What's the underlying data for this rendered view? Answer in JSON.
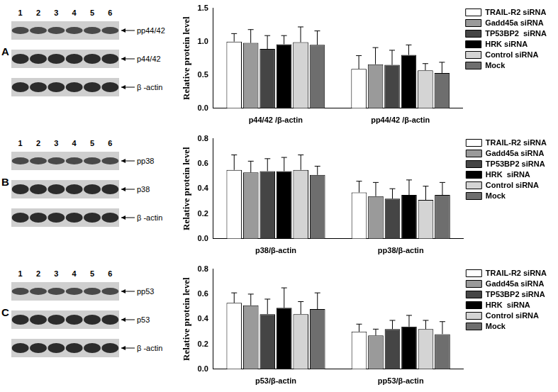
{
  "chart_data": [
    {
      "type": "bar",
      "panel": "A",
      "blot": {
        "lanes": [
          1,
          2,
          3,
          4,
          5,
          6
        ],
        "bands": [
          "pp44/42",
          "p44/42",
          "β -actin"
        ]
      },
      "y_label": "Relative protein level",
      "categories": [
        "p44/42 /β-actin",
        "pp44/42 /β-actin"
      ],
      "ylim": [
        0,
        1.5
      ],
      "yticks": [
        {
          "value": 0,
          "label": "0.0"
        },
        {
          "value": 0.5,
          "label": "0.5"
        },
        {
          "value": 1,
          "label": "1.0"
        },
        {
          "value": 1.5,
          "label": "1.5"
        }
      ],
      "grid": false,
      "legend": "right",
      "series": [
        {
          "name": "TRAIL-R2 siRNA",
          "color": "#ffffff",
          "values": [
            1.0,
            0.59
          ],
          "errors": [
            0.12,
            0.2
          ]
        },
        {
          "name": "Gadd45a siRNA",
          "color": "#9a9a9a",
          "values": [
            0.98,
            0.66
          ],
          "errors": [
            0.2,
            0.25
          ]
        },
        {
          "name": "TP53BP2  siRNA",
          "color": "#454545",
          "values": [
            0.89,
            0.65
          ],
          "errors": [
            0.2,
            0.22
          ]
        },
        {
          "name": "HRK siRNA",
          "color": "#000000",
          "values": [
            0.96,
            0.8
          ],
          "errors": [
            0.13,
            0.15
          ]
        },
        {
          "name": "Control siRNA",
          "color": "#d4d4d4",
          "values": [
            0.99,
            0.57
          ],
          "errors": [
            0.23,
            0.1
          ]
        },
        {
          "name": "Mock",
          "color": "#6e6e6e",
          "values": [
            0.95,
            0.53
          ],
          "errors": [
            0.21,
            0.16
          ]
        }
      ]
    },
    {
      "type": "bar",
      "panel": "B",
      "blot": {
        "lanes": [
          1,
          2,
          3,
          4,
          5,
          6
        ],
        "bands": [
          "pp38",
          "p38",
          "β -actin"
        ]
      },
      "y_label": "Relative protein level",
      "categories": [
        "p38/β-actin",
        "pp38/β-actin"
      ],
      "ylim": [
        0,
        0.8
      ],
      "yticks": [
        {
          "value": 0,
          "label": "0.0"
        },
        0.2,
        0.4,
        0.6,
        0.8
      ],
      "grid": false,
      "legend": "right",
      "series": [
        {
          "name": "TRAIL-R2 siRNA",
          "color": "#ffffff",
          "values": [
            0.55,
            0.37
          ],
          "errors": [
            0.12,
            0.09
          ]
        },
        {
          "name": "Gadd45a siRNA",
          "color": "#9a9a9a",
          "values": [
            0.53,
            0.34
          ],
          "errors": [
            0.09,
            0.11
          ]
        },
        {
          "name": "TP53BP2 siRNA",
          "color": "#454545",
          "values": [
            0.54,
            0.32
          ],
          "errors": [
            0.1,
            0.08
          ]
        },
        {
          "name": "HRK  siRNA",
          "color": "#000000",
          "values": [
            0.54,
            0.35
          ],
          "errors": [
            0.11,
            0.12
          ]
        },
        {
          "name": "Control siRNA",
          "color": "#d4d4d4",
          "values": [
            0.55,
            0.31
          ],
          "errors": [
            0.12,
            0.11
          ]
        },
        {
          "name": "Mock",
          "color": "#6e6e6e",
          "values": [
            0.51,
            0.35
          ],
          "errors": [
            0.07,
            0.1
          ]
        }
      ]
    },
    {
      "type": "bar",
      "panel": "C",
      "blot": {
        "lanes": [
          1,
          2,
          3,
          4,
          5,
          6
        ],
        "bands": [
          "pp53",
          "p53",
          "β -actin"
        ]
      },
      "y_label": "Relative protein level",
      "categories": [
        "p53/β-actin",
        "pp53/β-actin"
      ],
      "ylim": [
        0,
        0.8
      ],
      "yticks": [
        {
          "value": 0,
          "label": "0.0"
        },
        0.2,
        0.4,
        0.6,
        0.8
      ],
      "grid": false,
      "legend": "right",
      "series": [
        {
          "name": "TRAIL-R2 siRNA",
          "color": "#ffffff",
          "values": [
            0.53,
            0.3
          ],
          "errors": [
            0.08,
            0.06
          ]
        },
        {
          "name": "Gadd45a siRNA",
          "color": "#9a9a9a",
          "values": [
            0.51,
            0.27
          ],
          "errors": [
            0.09,
            0.05
          ]
        },
        {
          "name": "TP53BP2 siRNA",
          "color": "#454545",
          "values": [
            0.44,
            0.32
          ],
          "errors": [
            0.12,
            0.07
          ]
        },
        {
          "name": "HRK  siRNA",
          "color": "#000000",
          "values": [
            0.49,
            0.34
          ],
          "errors": [
            0.16,
            0.09
          ]
        },
        {
          "name": "Control siRNA",
          "color": "#d4d4d4",
          "values": [
            0.44,
            0.32
          ],
          "errors": [
            0.1,
            0.07
          ]
        },
        {
          "name": "Mock",
          "color": "#6e6e6e",
          "values": [
            0.48,
            0.28
          ],
          "errors": [
            0.13,
            0.1
          ]
        }
      ]
    }
  ]
}
